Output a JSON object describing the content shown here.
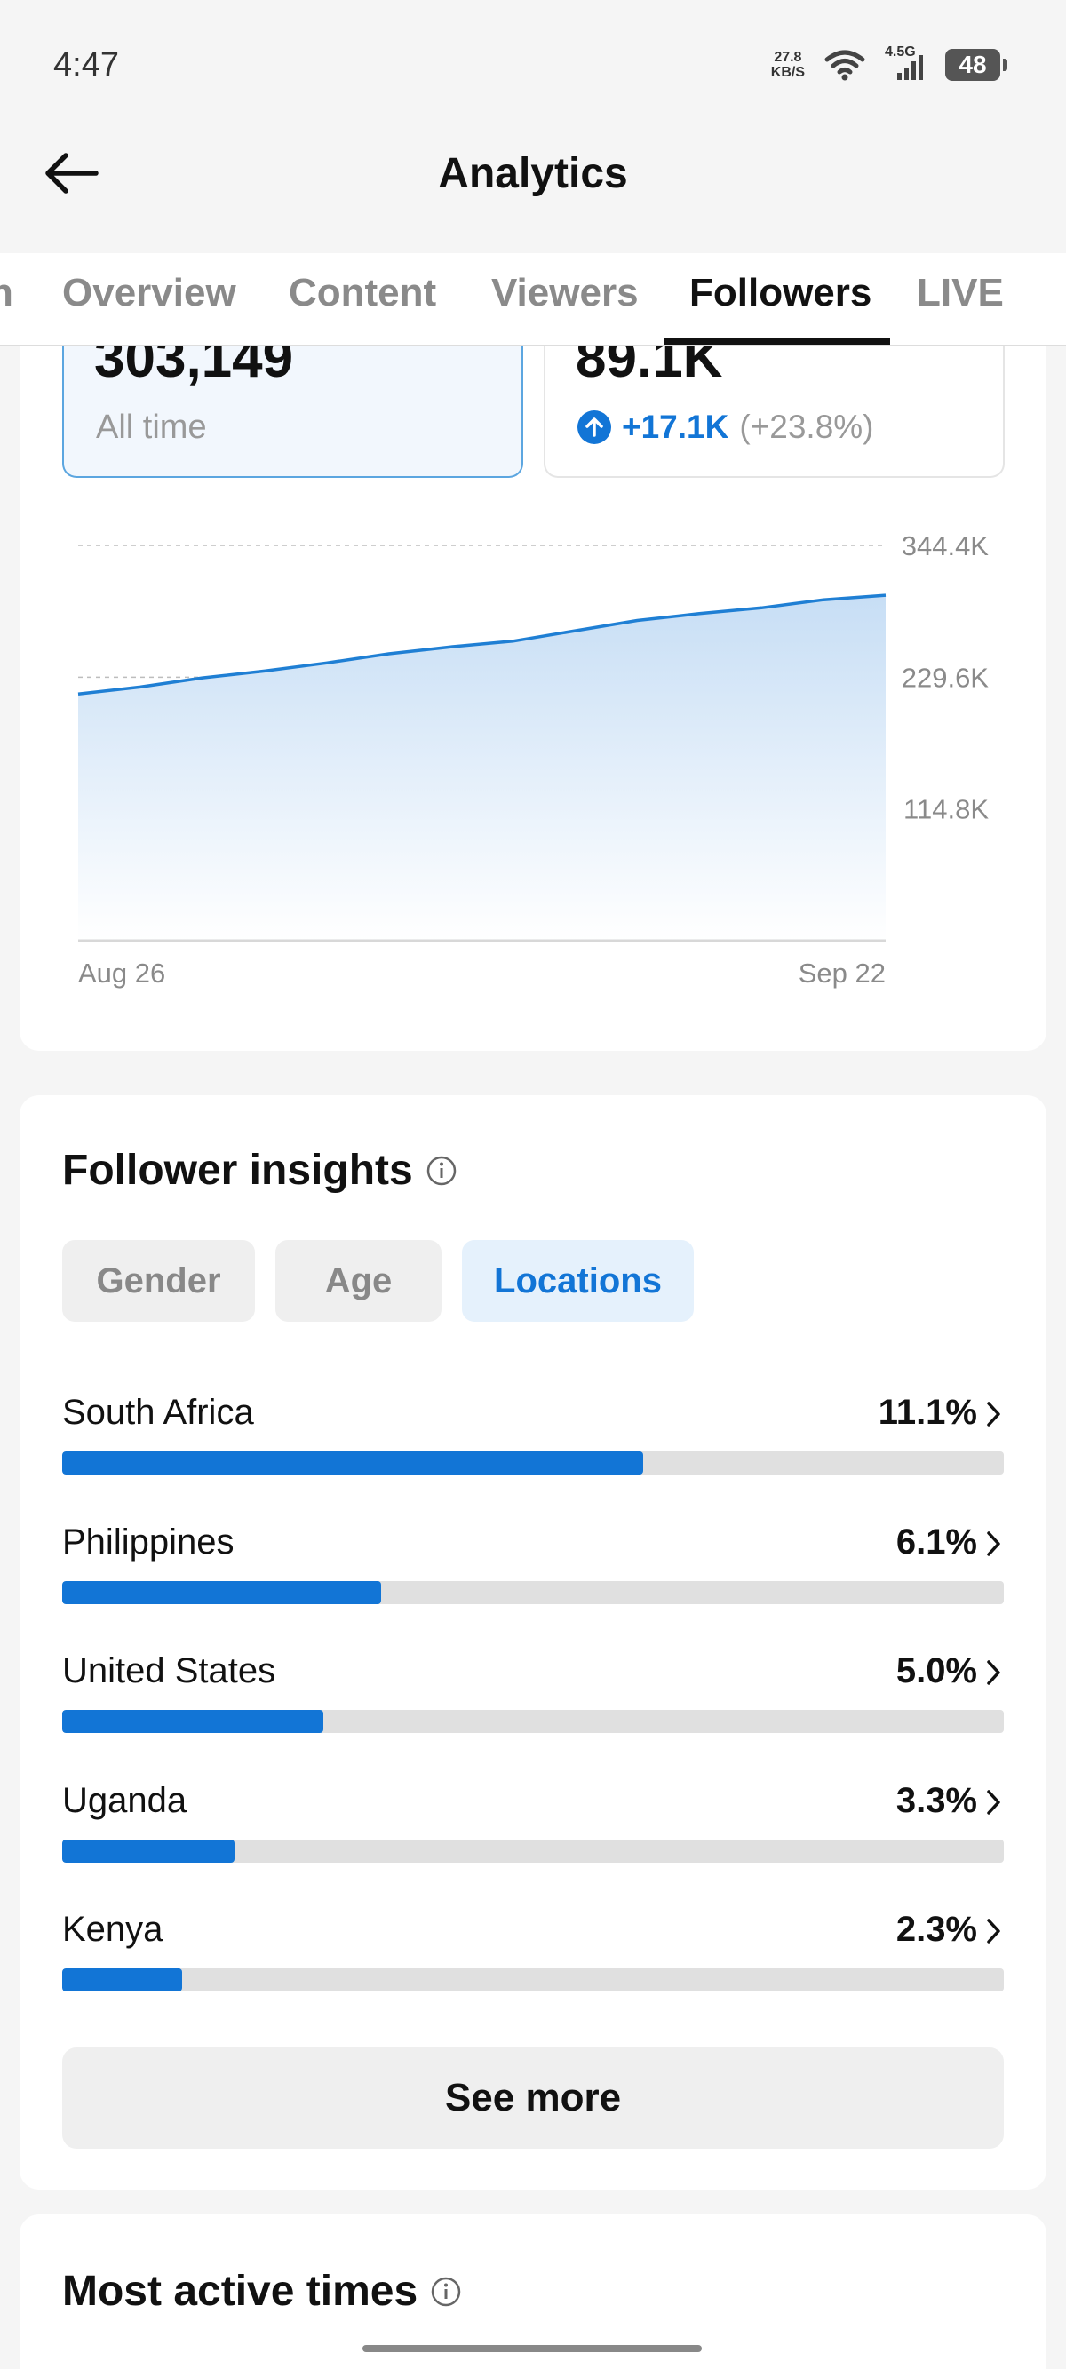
{
  "status_bar": {
    "time": "4:47",
    "net_speed_value": "27.8",
    "net_speed_unit": "KB/S",
    "network_type": "4.5G",
    "battery": "48",
    "wifi_icon": "wifi-icon",
    "signal_icon": "signal-icon"
  },
  "header": {
    "title": "Analytics",
    "back_icon": "arrow-left-icon"
  },
  "tabs": [
    {
      "label": "n",
      "active": false
    },
    {
      "label": "Overview",
      "active": false
    },
    {
      "label": "Content",
      "active": false
    },
    {
      "label": "Viewers",
      "active": false
    },
    {
      "label": "Followers",
      "active": true
    },
    {
      "label": "LIVE",
      "active": false
    }
  ],
  "stats": {
    "total": {
      "value": "303,149",
      "label": "All time"
    },
    "growth": {
      "value": "89.1K",
      "change": "+17.1K",
      "change_pct": "(+23.8%)"
    }
  },
  "chart_data": {
    "type": "area",
    "x_start_label": "Aug 26",
    "x_end_label": "Sep 22",
    "y_ticks": [
      "344.4K",
      "229.6K",
      "114.8K"
    ],
    "ylim": [
      0,
      344400
    ],
    "series": [
      {
        "values": [
          215000,
          221000,
          229000,
          235000,
          242000,
          250000,
          256000,
          261000,
          270000,
          279000,
          285000,
          290000,
          297000,
          301000
        ]
      }
    ],
    "grid": "horizontal dashed",
    "color": "#1f7fd4"
  },
  "insights": {
    "title": "Follower insights",
    "filters": [
      {
        "label": "Gender",
        "active": false
      },
      {
        "label": "Age",
        "active": false
      },
      {
        "label": "Locations",
        "active": true
      }
    ],
    "locations": [
      {
        "name": "South Africa",
        "pct": "11.1%",
        "fraction": 0.111
      },
      {
        "name": "Philippines",
        "pct": "6.1%",
        "fraction": 0.061
      },
      {
        "name": "United States",
        "pct": "5.0%",
        "fraction": 0.05
      },
      {
        "name": "Uganda",
        "pct": "3.3%",
        "fraction": 0.033
      },
      {
        "name": "Kenya",
        "pct": "2.3%",
        "fraction": 0.023
      }
    ],
    "see_more": "See more"
  },
  "active_times": {
    "title": "Most active times"
  },
  "colors": {
    "accent": "#1275d6",
    "background": "#f5f5f5"
  }
}
